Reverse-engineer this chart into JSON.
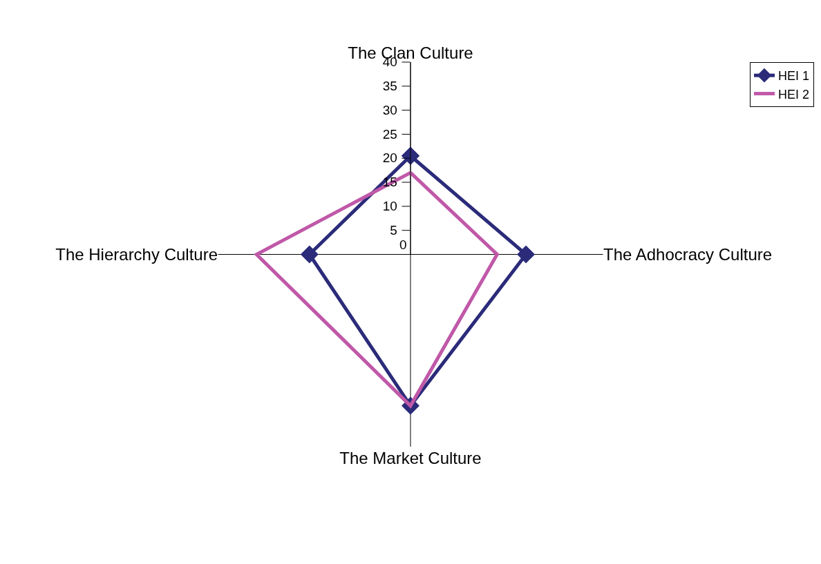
{
  "chart_data": {
    "type": "radar",
    "categories": [
      "The Clan Culture",
      "The Adhocracy Culture",
      "The Market Culture",
      "The Hierarchy Culture"
    ],
    "series": [
      {
        "name": "HEI 1",
        "color": "#2b2b7a",
        "values": [
          20.5,
          24,
          31.5,
          21
        ],
        "marker": "diamond"
      },
      {
        "name": "HEI 2",
        "color": "#c058a8",
        "values": [
          17,
          18,
          31.5,
          32
        ],
        "marker": "none"
      }
    ],
    "ylim": [
      0,
      40
    ],
    "yticks": [
      0,
      5,
      10,
      15,
      20,
      25,
      30,
      35,
      40
    ],
    "grid": false,
    "legend": "top right",
    "line_style": "solid"
  }
}
